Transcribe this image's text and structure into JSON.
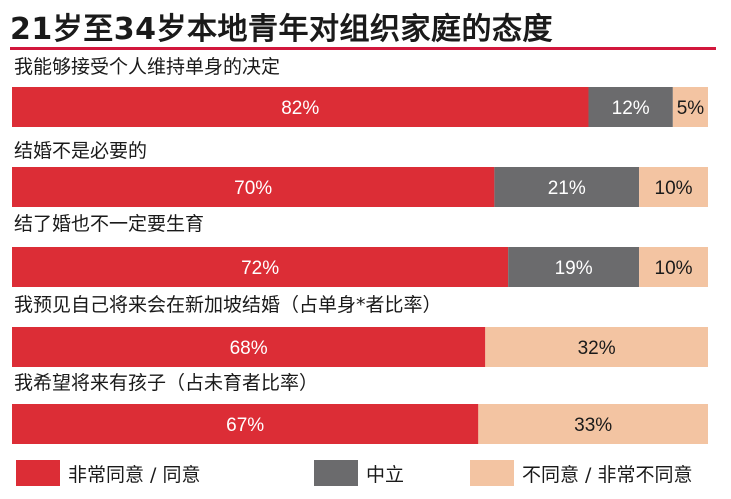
{
  "chart_data": {
    "type": "bar",
    "orientation": "horizontal",
    "stacked": true,
    "title": "21岁至34岁本地青年对组织家庭的态度",
    "unit": "%",
    "categories": [
      "我能够接受个人维持单身的决定",
      "结婚不是必要的",
      "结了婚也不一定要生育",
      "我预见自己将来会在新加坡结婚（占单身*者比率）",
      "我希望将来有孩子（占未育者比率）"
    ],
    "series": [
      {
        "name": "非常同意 / 同意",
        "color": "#dc2d36",
        "values": [
          82,
          70,
          72,
          68,
          67
        ]
      },
      {
        "name": "中立",
        "color": "#6b6b6d",
        "values": [
          12,
          21,
          19,
          null,
          null
        ]
      },
      {
        "name": "不同意 / 非常不同意",
        "color": "#f3c4a2",
        "values": [
          5,
          10,
          10,
          32,
          33
        ]
      }
    ],
    "legend_position": "bottom"
  }
}
